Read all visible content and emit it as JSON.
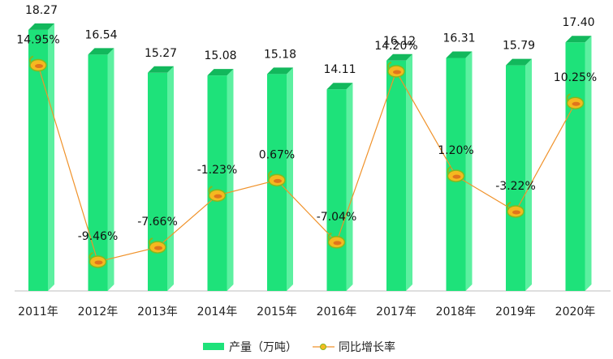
{
  "chart_data": {
    "type": "bar",
    "categories": [
      "2011年",
      "2012年",
      "2013年",
      "2014年",
      "2015年",
      "2016年",
      "2017年",
      "2018年",
      "2019年",
      "2020年"
    ],
    "series": [
      {
        "name": "产量（万吨）",
        "type": "bar",
        "values": [
          18.27,
          16.54,
          15.27,
          15.08,
          15.18,
          14.11,
          16.12,
          16.31,
          15.79,
          17.4
        ],
        "labels": [
          "18.27",
          "16.54",
          "15.27",
          "15.08",
          "15.18",
          "14.11",
          "16.12",
          "16.31",
          "15.79",
          "17.40"
        ]
      },
      {
        "name": "同比增长率",
        "type": "line",
        "values": [
          14.95,
          -9.46,
          -7.66,
          -1.23,
          0.67,
          -7.04,
          14.2,
          1.2,
          -3.22,
          10.25
        ],
        "labels": [
          "14.95%",
          "-9.46%",
          "-7.66%",
          "-1.23%",
          "0.67%",
          "-7.04%",
          "14.20%",
          "1.20%",
          "-3.22%",
          "10.25%"
        ]
      }
    ],
    "title": "",
    "xlabel": "",
    "ylabel": "",
    "grid": false,
    "legend": "bottom-center",
    "colors": {
      "bar_front": "#1ee27a",
      "bar_side": "#5cf0a0",
      "bar_top": "#12b85c",
      "line": "#f0922a",
      "marker": "#f5b820",
      "marker_edge": "#86b81e",
      "axis": "#bfbfbf"
    }
  }
}
